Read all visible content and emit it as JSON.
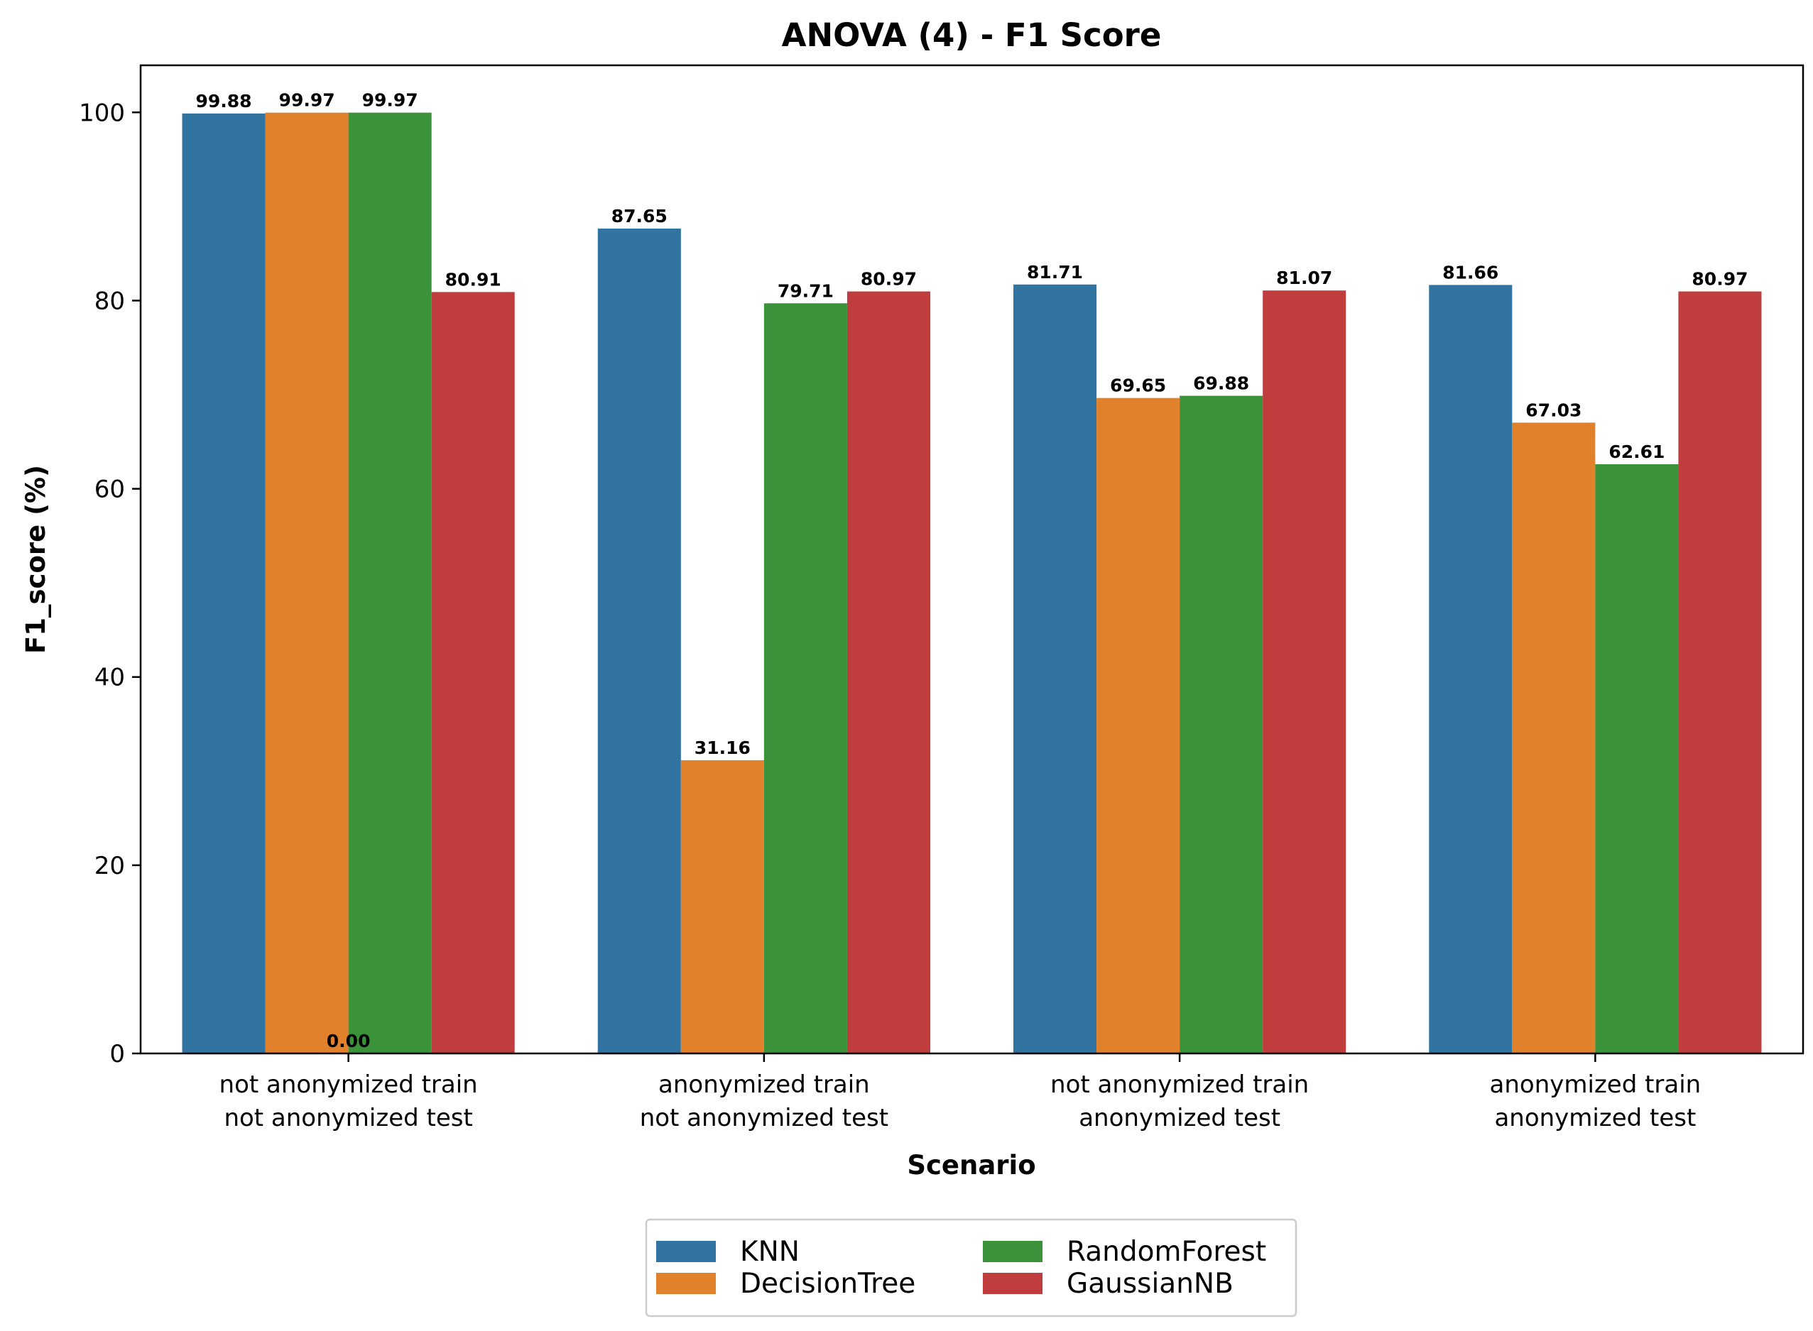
{
  "chart_data": {
    "type": "bar",
    "title": "ANOVA (4) - F1 Score",
    "xlabel": "Scenario",
    "ylabel": "F1_score (%)",
    "ylim": [
      0,
      105
    ],
    "yticks": [
      "0",
      "20",
      "40",
      "60",
      "80",
      "100"
    ],
    "grid": false,
    "legend_position": "bottom-center",
    "categories": [
      [
        "not anonymized train",
        "not anonymized test"
      ],
      [
        "anonymized train",
        "not anonymized test"
      ],
      [
        "not anonymized train",
        "anonymized test"
      ],
      [
        "anonymized train",
        "anonymized test"
      ]
    ],
    "series": [
      {
        "name": "KNN",
        "color": "#3274a1",
        "values": [
          99.88,
          87.65,
          81.71,
          81.66
        ],
        "labels": [
          "99.88",
          "87.65",
          "81.71",
          "81.66"
        ]
      },
      {
        "name": "DecisionTree",
        "color": "#e1812c",
        "values": [
          99.97,
          31.16,
          69.65,
          67.03
        ],
        "labels": [
          "99.97",
          "31.16",
          "69.65",
          "67.03"
        ]
      },
      {
        "name": "RandomForest",
        "color": "#3a923a",
        "values": [
          99.97,
          79.71,
          69.88,
          62.61
        ],
        "labels": [
          "99.97",
          "79.71",
          "69.88",
          "62.61"
        ]
      },
      {
        "name": "GaussianNB",
        "color": "#c03d3e",
        "values": [
          80.91,
          80.97,
          81.07,
          80.97
        ],
        "labels": [
          "80.91",
          "80.97",
          "81.07",
          "80.97"
        ]
      }
    ],
    "extra_label": "0.00"
  }
}
